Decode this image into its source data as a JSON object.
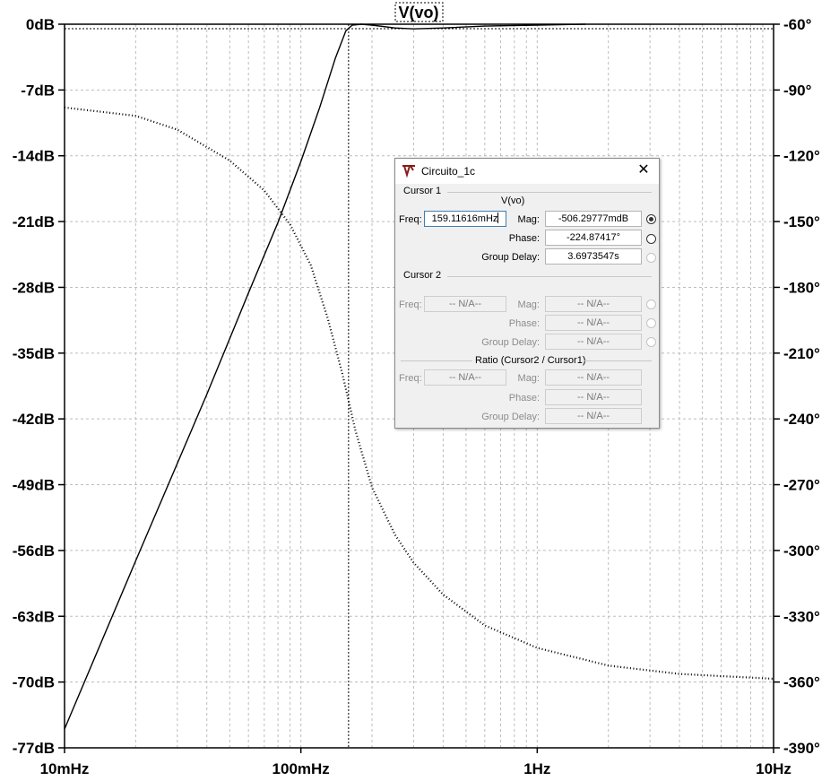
{
  "trace_title": "V(vo)",
  "chart_data": {
    "type": "line",
    "x_scale": "log",
    "xlim_hz": [
      0.01,
      10
    ],
    "x_ticks": [
      "10mHz",
      "100mHz",
      "1Hz",
      "10Hz"
    ],
    "y_left_ticks": [
      "0dB",
      "-7dB",
      "-14dB",
      "-21dB",
      "-28dB",
      "-35dB",
      "-42dB",
      "-49dB",
      "-56dB",
      "-63dB",
      "-70dB",
      "-77dB"
    ],
    "y_left_range_db": [
      -77,
      0
    ],
    "y_right_ticks": [
      "-60°",
      "-90°",
      "-120°",
      "-150°",
      "-180°",
      "-210°",
      "-240°",
      "-270°",
      "-300°",
      "-330°",
      "-360°",
      "-390°"
    ],
    "y_right_range_deg": [
      -390,
      -60
    ],
    "grid": true,
    "cursor_frequency_hz": 0.15911616,
    "series": [
      {
        "style": "solid",
        "axis": "left",
        "x": [
          0.01,
          0.02,
          0.04,
          0.06,
          0.08,
          0.1,
          0.12,
          0.14,
          0.155,
          0.165,
          0.18,
          0.2,
          0.25,
          0.3,
          0.4,
          0.6,
          1.0,
          1.6
        ],
        "y": [
          -75.0,
          -57.1,
          -39.4,
          -28.6,
          -21.1,
          -14.6,
          -8.9,
          -3.6,
          -0.7,
          -0.1,
          0.0,
          -0.1,
          -0.4,
          -0.5,
          -0.4,
          -0.2,
          -0.1,
          0.0
        ]
      },
      {
        "style": "dotted",
        "axis": "right",
        "x": [
          0.01,
          0.02,
          0.03,
          0.05,
          0.07,
          0.09,
          0.11,
          0.13,
          0.15,
          0.17,
          0.2,
          0.25,
          0.3,
          0.4,
          0.6,
          1.0,
          2.0,
          4.0,
          10.0
        ],
        "y": [
          -98,
          -101.8,
          -108.1,
          -122.2,
          -135.8,
          -151.3,
          -169.8,
          -194.2,
          -219.7,
          -245.1,
          -271.2,
          -292.8,
          -305.6,
          -320.1,
          -334.2,
          -344.4,
          -352.5,
          -356.3,
          -358.5
        ]
      }
    ]
  },
  "dialog": {
    "title": "Circuito_1c",
    "cursor1": {
      "group_label": "Cursor 1",
      "trace_name": "V(vo)",
      "freq_label": "Freq:",
      "freq_value": "159.11616mHz",
      "mag_label": "Mag:",
      "mag_value": "-506.29777mdB",
      "phase_label": "Phase:",
      "phase_value": "-224.87417°",
      "group_delay_label": "Group Delay:",
      "group_delay_value": "3.6973547s"
    },
    "cursor2": {
      "group_label": "Cursor 2",
      "freq_label": "Freq:",
      "freq_value": "-- N/A--",
      "mag_label": "Mag:",
      "mag_value": "-- N/A--",
      "phase_label": "Phase:",
      "phase_value": "-- N/A--",
      "group_delay_label": "Group Delay:",
      "group_delay_value": "-- N/A--"
    },
    "ratio": {
      "group_label": "Ratio (Cursor2 / Cursor1)",
      "freq_label": "Freq:",
      "freq_value": "-- N/A--",
      "mag_label": "Mag:",
      "mag_value": "-- N/A--",
      "phase_label": "Phase:",
      "phase_value": "-- N/A--",
      "group_delay_label": "Group Delay:",
      "group_delay_value": "-- N/A--"
    }
  }
}
